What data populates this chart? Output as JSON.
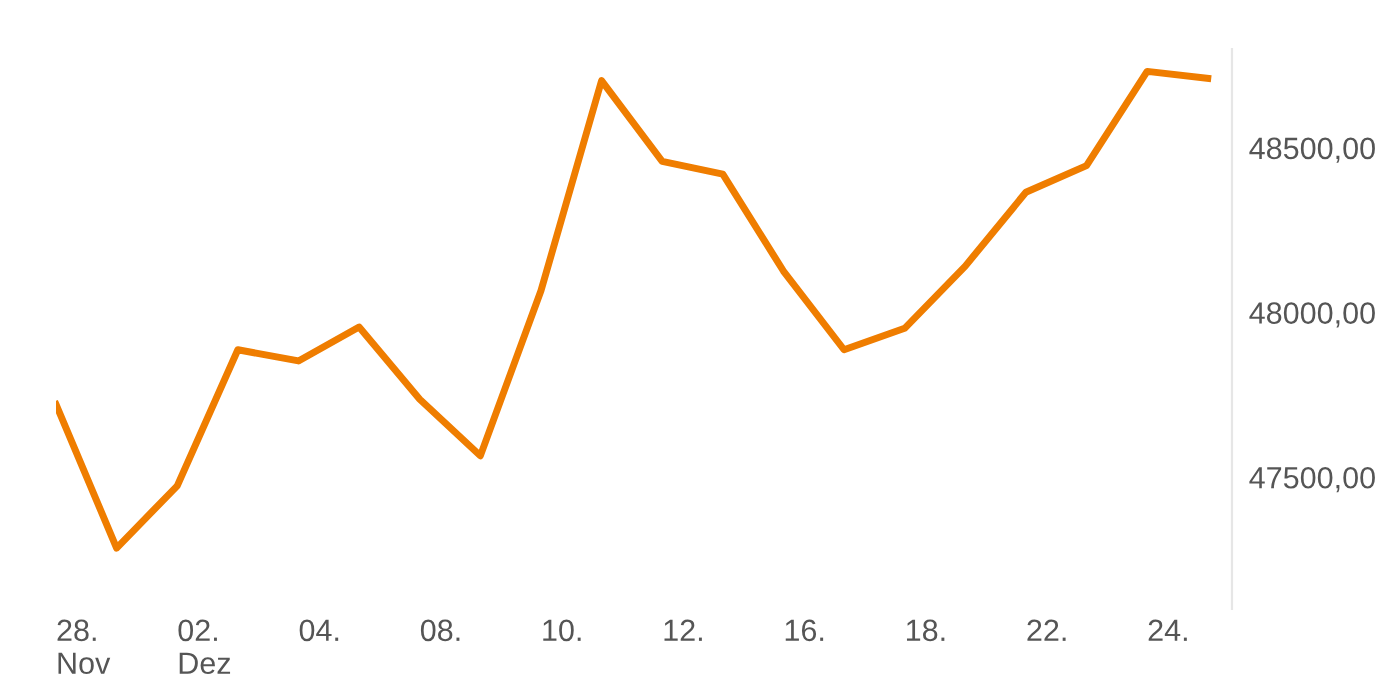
{
  "chart_data": {
    "type": "line",
    "categories": [
      "28.\nNov",
      null,
      "02.\nDez",
      null,
      "04.",
      null,
      "08.",
      null,
      "10.",
      null,
      "12.",
      null,
      "16.",
      null,
      "18.",
      null,
      "22.",
      null,
      "24.",
      null
    ],
    "series": [
      {
        "color": "#ef7d00",
        "values": [
          47721,
          47285,
          47474,
          47887,
          47853,
          47956,
          47737,
          47565,
          48066,
          48704,
          48459,
          48420,
          48126,
          47887,
          47952,
          48141,
          48365,
          48446,
          48732,
          48711
        ]
      }
    ],
    "ylim": [
      47100,
      48800
    ],
    "yticks": [
      {
        "value": 47500,
        "label": "47500,00"
      },
      {
        "value": 48000,
        "label": "48000,00"
      },
      {
        "value": 48500,
        "label": "48500,00"
      }
    ],
    "grid": false,
    "legend": false,
    "marker": "none",
    "line_style": "solid"
  }
}
